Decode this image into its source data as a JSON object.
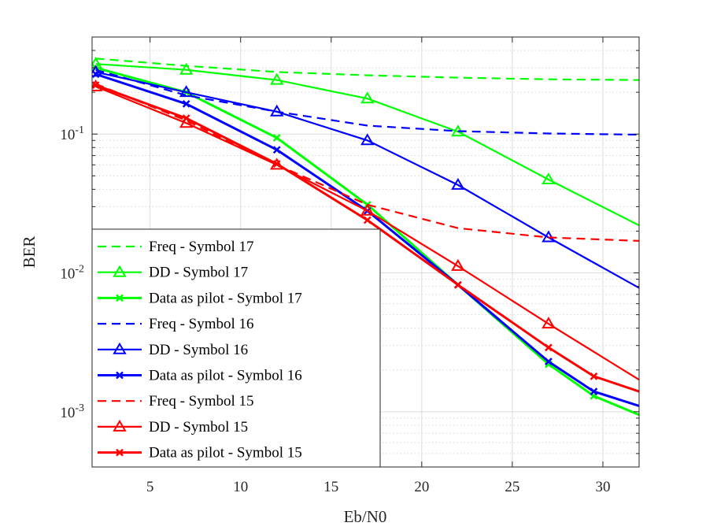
{
  "chart_data": {
    "type": "line",
    "yscale": "log",
    "xlabel": "Eb/N0",
    "ylabel": "BER",
    "xlim": [
      1.8,
      32
    ],
    "ylim": [
      0.0004,
      0.5
    ],
    "xticks": [
      5,
      10,
      15,
      20,
      25,
      30
    ],
    "yticks": [
      {
        "value": 0.1,
        "base": "10",
        "exp": "-1"
      },
      {
        "value": 0.01,
        "base": "10",
        "exp": "-2"
      },
      {
        "value": 0.001,
        "base": "10",
        "exp": "-3"
      }
    ],
    "grid": true,
    "legend_position": "bottom-left",
    "series": [
      {
        "name": "Freq - Symbol 17",
        "color": "#00ff00",
        "style": "dashed",
        "marker": "none",
        "x": [
          2,
          7,
          12,
          17,
          22,
          27,
          32
        ],
        "y": [
          0.35,
          0.31,
          0.28,
          0.265,
          0.255,
          0.248,
          0.245
        ]
      },
      {
        "name": "DD - Symbol 17",
        "color": "#00ff00",
        "style": "solid",
        "marker": "triangle",
        "x": [
          2,
          7,
          12,
          17,
          22,
          27,
          32
        ],
        "y": [
          0.32,
          0.29,
          0.245,
          0.18,
          0.104,
          0.047,
          0.022
        ]
      },
      {
        "name": "Data as pilot - Symbol 17",
        "color": "#00ff00",
        "style": "solid",
        "marker": "x",
        "x": [
          2,
          7,
          12,
          17,
          22,
          27,
          29.5,
          32
        ],
        "y": [
          0.3,
          0.2,
          0.094,
          0.031,
          0.0082,
          0.0022,
          0.0013,
          0.00095
        ]
      },
      {
        "name": "Freq - Symbol 16",
        "color": "#0000ff",
        "style": "dashed",
        "marker": "none",
        "x": [
          2,
          7,
          12,
          17,
          22,
          27,
          32
        ],
        "y": [
          0.29,
          0.19,
          0.145,
          0.115,
          0.105,
          0.101,
          0.099
        ]
      },
      {
        "name": "DD - Symbol 16",
        "color": "#0000ff",
        "style": "solid",
        "marker": "triangle",
        "x": [
          2,
          7,
          12,
          17,
          22,
          27,
          32
        ],
        "y": [
          0.28,
          0.2,
          0.145,
          0.09,
          0.043,
          0.018,
          0.0078
        ]
      },
      {
        "name": "Data as pilot - Symbol 16",
        "color": "#0000ff",
        "style": "solid",
        "marker": "x",
        "x": [
          2,
          7,
          12,
          17,
          22,
          27,
          29.5,
          32
        ],
        "y": [
          0.27,
          0.165,
          0.077,
          0.028,
          0.0082,
          0.0023,
          0.0014,
          0.0011
        ]
      },
      {
        "name": "Freq - Symbol 15",
        "color": "#ff0000",
        "style": "dashed",
        "marker": "none",
        "x": [
          2,
          7,
          12,
          17,
          22,
          27,
          32
        ],
        "y": [
          0.23,
          0.125,
          0.06,
          0.031,
          0.021,
          0.018,
          0.017
        ]
      },
      {
        "name": "DD - Symbol 15",
        "color": "#ff0000",
        "style": "solid",
        "marker": "triangle",
        "x": [
          2,
          7,
          12,
          17,
          22,
          27,
          32
        ],
        "y": [
          0.22,
          0.12,
          0.06,
          0.028,
          0.0112,
          0.0043,
          0.0017
        ]
      },
      {
        "name": "Data as pilot - Symbol 15",
        "color": "#ff0000",
        "style": "solid",
        "marker": "x",
        "x": [
          2,
          7,
          12,
          17,
          22,
          27,
          29.5,
          32
        ],
        "y": [
          0.225,
          0.13,
          0.061,
          0.024,
          0.0082,
          0.0029,
          0.0018,
          0.0014
        ]
      }
    ]
  }
}
